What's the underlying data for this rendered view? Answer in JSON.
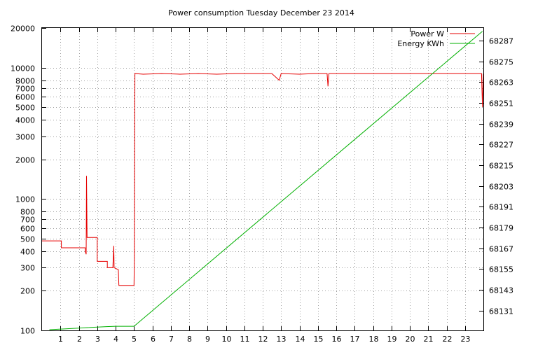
{
  "chart_data": {
    "type": "line",
    "title": "Power consumption Tuesday December 23 2014",
    "xlabel": "",
    "ylabel": "",
    "y2label": "",
    "grid": true,
    "legend_position": "top-right",
    "x_range": [
      0,
      24
    ],
    "x_ticks": [
      1,
      2,
      3,
      4,
      5,
      6,
      7,
      8,
      9,
      10,
      11,
      12,
      13,
      14,
      15,
      16,
      17,
      18,
      19,
      20,
      21,
      22,
      23
    ],
    "y_scale": "log",
    "y_range": [
      100,
      20000
    ],
    "y_ticks": [
      {
        "value": 100,
        "label": "100"
      },
      {
        "value": 200,
        "label": "200"
      },
      {
        "value": 300,
        "label": "300"
      },
      {
        "value": 400,
        "label": "400"
      },
      {
        "value": 500,
        "label": "500"
      },
      {
        "value": 600,
        "label": "600"
      },
      {
        "value": 700,
        "label": "700"
      },
      {
        "value": 800,
        "label": "800"
      },
      {
        "value": 1000,
        "label": "1000"
      },
      {
        "value": 2000,
        "label": "2000"
      },
      {
        "value": 3000,
        "label": "3000"
      },
      {
        "value": 4000,
        "label": "4000"
      },
      {
        "value": 5000,
        "label": "5000"
      },
      {
        "value": 6000,
        "label": "6000"
      },
      {
        "value": 7000,
        "label": "7000"
      },
      {
        "value": 8000,
        "label": "8000"
      },
      {
        "value": 10000,
        "label": "10000"
      },
      {
        "value": 20000,
        "label": "20000"
      }
    ],
    "y2_range": [
      68119.6,
      68294.2
    ],
    "y2_ticks": [
      68131,
      68143,
      68155,
      68167,
      68179,
      68191,
      68203,
      68215,
      68227,
      68239,
      68251,
      68263,
      68275,
      68287
    ],
    "series": [
      {
        "name": "Power W",
        "axis": "left",
        "color": "#e60000",
        "points": [
          [
            0,
            480
          ],
          [
            1.05,
            480
          ],
          [
            1.05,
            425
          ],
          [
            2.35,
            425
          ],
          [
            2.35,
            400
          ],
          [
            2.4,
            380
          ],
          [
            2.42,
            1500
          ],
          [
            2.45,
            510
          ],
          [
            2.5,
            510
          ],
          [
            3.0,
            510
          ],
          [
            3.0,
            335
          ],
          [
            3.55,
            335
          ],
          [
            3.55,
            300
          ],
          [
            3.85,
            300
          ],
          [
            3.9,
            440
          ],
          [
            3.92,
            300
          ],
          [
            4.15,
            290
          ],
          [
            4.18,
            220
          ],
          [
            5.0,
            220
          ],
          [
            5.02,
            350
          ],
          [
            5.05,
            9000
          ],
          [
            5.5,
            8900
          ],
          [
            6.5,
            9000
          ],
          [
            7.5,
            8900
          ],
          [
            8.5,
            9000
          ],
          [
            9.5,
            8900
          ],
          [
            10.5,
            9000
          ],
          [
            11.5,
            9000
          ],
          [
            12.5,
            9000
          ],
          [
            12.9,
            8000
          ],
          [
            13.0,
            9000
          ],
          [
            14.0,
            8900
          ],
          [
            14.8,
            9000
          ],
          [
            15.5,
            9000
          ],
          [
            15.55,
            7200
          ],
          [
            15.6,
            9000
          ],
          [
            16.5,
            9000
          ],
          [
            17.5,
            9000
          ],
          [
            18.5,
            9000
          ],
          [
            19.5,
            9000
          ],
          [
            20.5,
            9000
          ],
          [
            21.5,
            9000
          ],
          [
            22.5,
            9000
          ],
          [
            23.5,
            9000
          ],
          [
            23.9,
            9000
          ],
          [
            23.95,
            5000
          ],
          [
            24,
            9000
          ]
        ]
      },
      {
        "name": "Energy KWh",
        "axis": "right",
        "color": "#00b000",
        "points": [
          [
            0.4,
            68120.0
          ],
          [
            1.3,
            68120.5
          ],
          [
            2.5,
            68121.2
          ],
          [
            3.5,
            68121.8
          ],
          [
            4.0,
            68122.0
          ],
          [
            5.0,
            68122.0
          ],
          [
            23.95,
            68292.3
          ]
        ]
      }
    ]
  }
}
